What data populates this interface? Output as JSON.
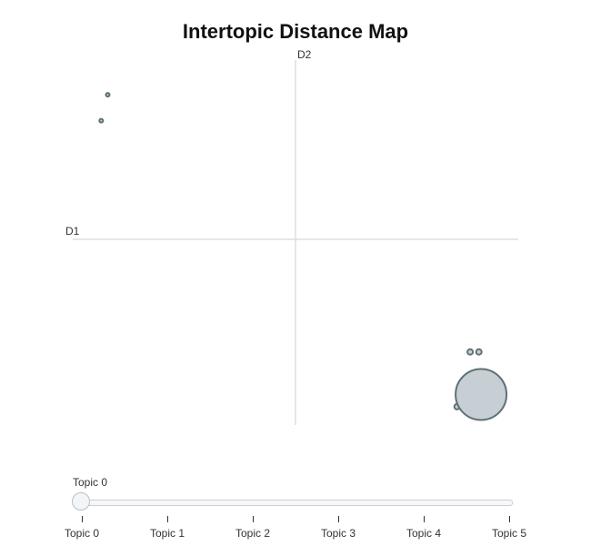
{
  "chart_data": {
    "type": "scatter",
    "title": "Intertopic Distance Map",
    "xlabel": "D1",
    "ylabel": "D2",
    "xlim": [
      -10,
      10
    ],
    "ylim": [
      -10,
      10
    ],
    "grid": false,
    "colors": {
      "marker_fill": "#c7cfd5",
      "marker_stroke": "#5f7175",
      "axis_line": "#dddddd"
    },
    "points": [
      {
        "x": -8.6,
        "y": 9.5,
        "size": 2
      },
      {
        "x": -8.9,
        "y": 7.8,
        "size": 2
      },
      {
        "x": 8.0,
        "y": -7.4,
        "size": 3
      },
      {
        "x": 8.4,
        "y": -7.4,
        "size": 3
      },
      {
        "x": 7.4,
        "y": -11.0,
        "size": 3
      },
      {
        "x": 8.5,
        "y": -10.2,
        "size": 28
      }
    ]
  },
  "slider": {
    "current_label": "Topic 0",
    "steps": [
      "Topic 0",
      "Topic 1",
      "Topic 2",
      "Topic 3",
      "Topic 4",
      "Topic 5"
    ],
    "active_index": 0
  }
}
